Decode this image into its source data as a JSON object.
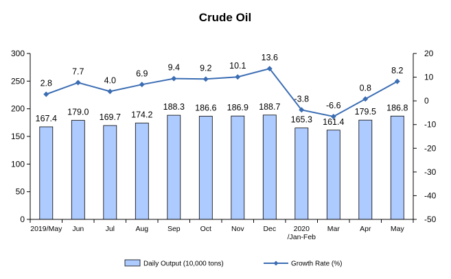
{
  "chart_data": {
    "type": "bar",
    "title": "Crude Oil",
    "categories": [
      [
        "2019/May"
      ],
      [
        "Jun"
      ],
      [
        "Jul"
      ],
      [
        "Aug"
      ],
      [
        "Sep"
      ],
      [
        "Oct"
      ],
      [
        "Nov"
      ],
      [
        "Dec"
      ],
      [
        "2020",
        "/Jan-Feb"
      ],
      [
        "Mar"
      ],
      [
        "Apr"
      ],
      [
        "May"
      ]
    ],
    "series": [
      {
        "name": "Daily Output (10,000 tons)",
        "type": "bar",
        "axis": "left",
        "values": [
          167.4,
          179.0,
          169.7,
          174.2,
          188.3,
          186.6,
          186.9,
          188.7,
          165.3,
          161.4,
          179.5,
          186.8
        ],
        "labels": [
          "167.4",
          "179.0",
          "169.7",
          "174.2",
          "188.3",
          "186.6",
          "186.9",
          "188.7",
          "165.3",
          "161.4",
          "179.5",
          "186.8"
        ],
        "color": "#aecbff"
      },
      {
        "name": "Growth Rate (%)",
        "type": "line",
        "axis": "right",
        "values": [
          2.8,
          7.7,
          4.0,
          6.9,
          9.4,
          9.2,
          10.1,
          13.6,
          -3.8,
          -6.6,
          0.8,
          8.2
        ],
        "labels": [
          "2.8",
          "7.7",
          "4.0",
          "6.9",
          "9.4",
          "9.2",
          "10.1",
          "13.6",
          "-3.8",
          "-6.6",
          "0.8",
          "8.2"
        ],
        "color": "#3b6db3"
      }
    ],
    "y_left": {
      "min": 0,
      "max": 300,
      "ticks": [
        "0",
        "50",
        "100",
        "150",
        "200",
        "250",
        "300"
      ]
    },
    "y_right": {
      "min": -50,
      "max": 20,
      "ticks": [
        "-50",
        "-40",
        "-30",
        "-20",
        "-10",
        "0",
        "10",
        "20"
      ]
    },
    "grid": false,
    "legend_position": "bottom"
  }
}
